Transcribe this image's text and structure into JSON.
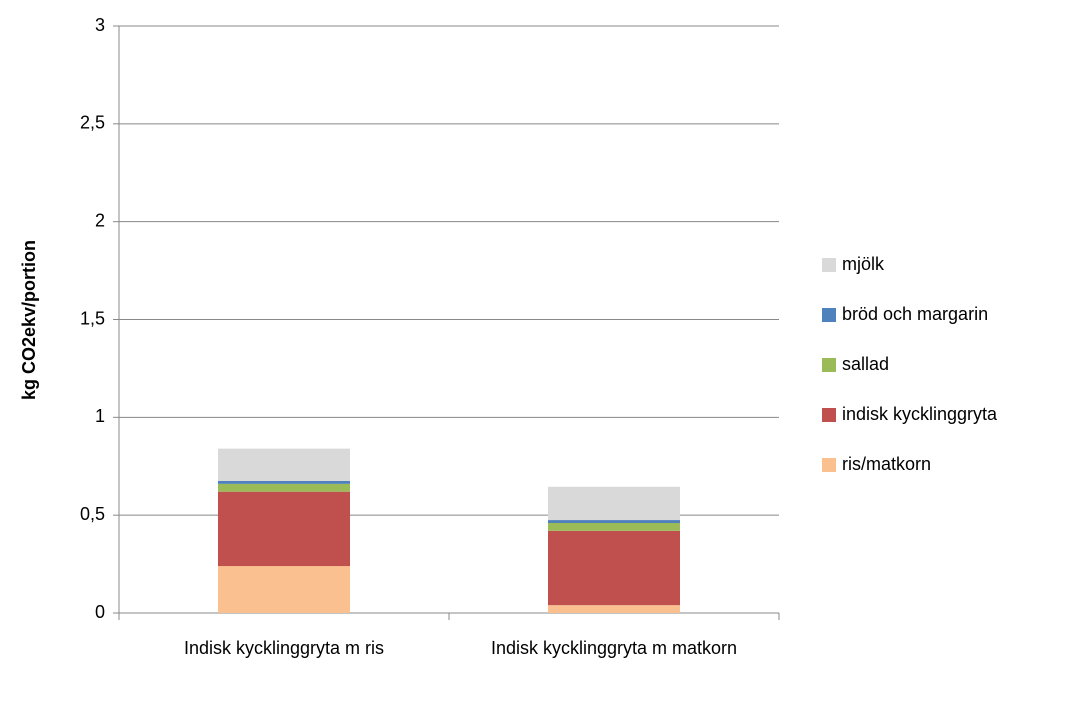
{
  "chart_data": {
    "type": "stacked_bar",
    "y_label": "kg CO2ekv/portion",
    "categories": [
      "Indisk kycklinggryta m ris",
      "Indisk kycklinggryta m matkorn"
    ],
    "series": [
      {
        "name": "ris/matkorn",
        "color": "#fac090",
        "values": [
          0.24,
          0.04
        ]
      },
      {
        "name": "indisk kycklinggryta",
        "color": "#c0504d",
        "values": [
          0.38,
          0.38
        ]
      },
      {
        "name": "sallad",
        "color": "#9bbb59",
        "values": [
          0.04,
          0.04
        ]
      },
      {
        "name": "bröd och margarin",
        "color": "#4f81bd",
        "values": [
          0.015,
          0.015
        ]
      },
      {
        "name": "mjölk",
        "color": "#d9d9d9",
        "values": [
          0.165,
          0.17
        ]
      }
    ],
    "ylim": [
      0,
      3
    ],
    "yticks": [
      0,
      {
        "value": 0.5,
        "label": "0,5"
      },
      1,
      {
        "value": 1.5,
        "label": "1,5"
      },
      2,
      {
        "value": 2.5,
        "label": "2,5"
      },
      3
    ],
    "grid": true,
    "legend": "right"
  }
}
